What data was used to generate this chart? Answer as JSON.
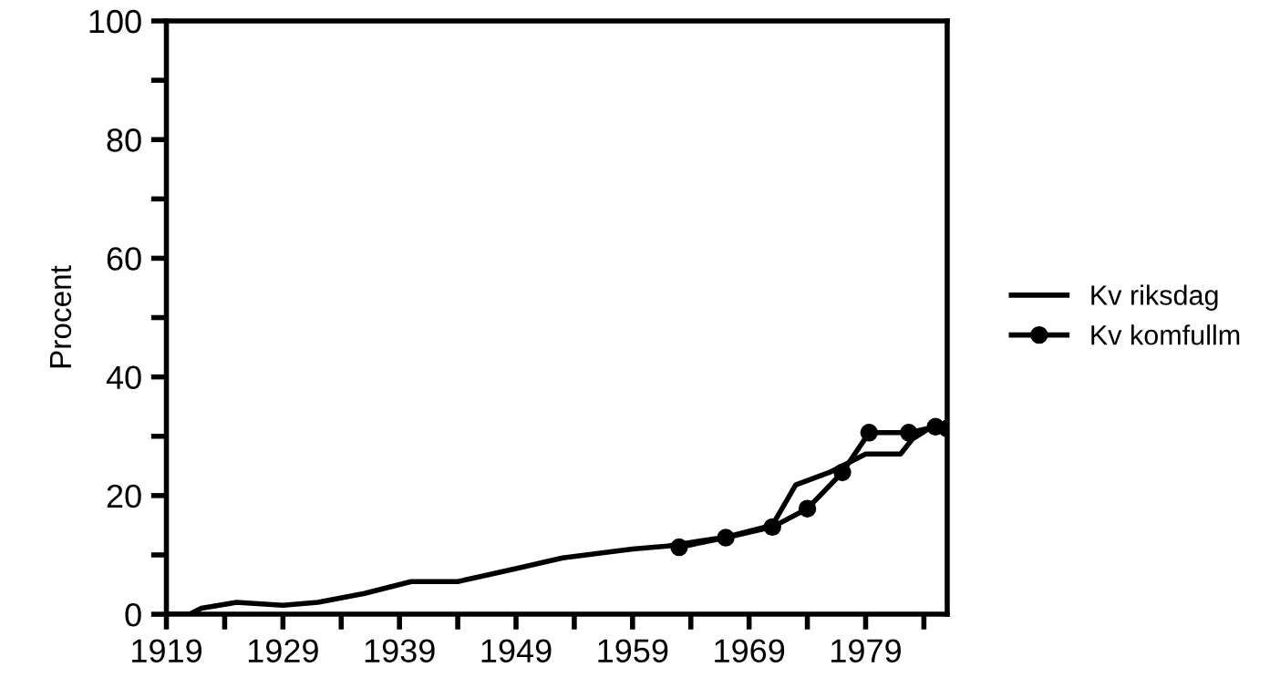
{
  "chart_data": {
    "type": "line",
    "ylabel": "Procent",
    "xlim": [
      1919,
      1986
    ],
    "ylim": [
      0,
      100
    ],
    "xticks": [
      1919,
      {
        "value": 1924,
        "label": null
      },
      1929,
      {
        "value": 1934,
        "label": null
      },
      1939,
      {
        "value": 1944,
        "label": null
      },
      1949,
      {
        "value": 1954,
        "label": null
      },
      1959,
      {
        "value": 1964,
        "label": null
      },
      1969,
      {
        "value": 1974,
        "label": null
      },
      1979,
      {
        "value": 1984,
        "label": null
      }
    ],
    "yticks": [
      0,
      {
        "value": 10,
        "label": null
      },
      20,
      {
        "value": 30,
        "label": null
      },
      40,
      {
        "value": 50,
        "label": null
      },
      60,
      {
        "value": 70,
        "label": null
      },
      80,
      {
        "value": 90,
        "label": null
      },
      100
    ],
    "grid": false,
    "legend": "right",
    "marker": "circle",
    "series": [
      {
        "name": "Kv riksdag",
        "color": "#000000",
        "marker": "none",
        "x": [
          1919,
          1921,
          1922,
          1925,
          1929,
          1932,
          1936,
          1940,
          1944,
          1949,
          1953,
          1959,
          1962,
          1967,
          1971,
          1973,
          1976,
          1979,
          1982,
          1983,
          1985
        ],
        "values": [
          0,
          0,
          1,
          2,
          1.5,
          2,
          3.5,
          5.5,
          5.5,
          7.7,
          9.5,
          11,
          11.5,
          13,
          15,
          21.8,
          24,
          27,
          27,
          29.5,
          32
        ]
      },
      {
        "name": "Kv komfullm",
        "color": "#000000",
        "x": [
          1963,
          1967,
          1971,
          1974,
          1977,
          1979.3,
          1982.7,
          1985,
          1986
        ],
        "values": [
          11.3,
          12.9,
          14.7,
          17.8,
          23.9,
          30.6,
          30.6,
          31.6,
          31.3
        ]
      }
    ]
  }
}
